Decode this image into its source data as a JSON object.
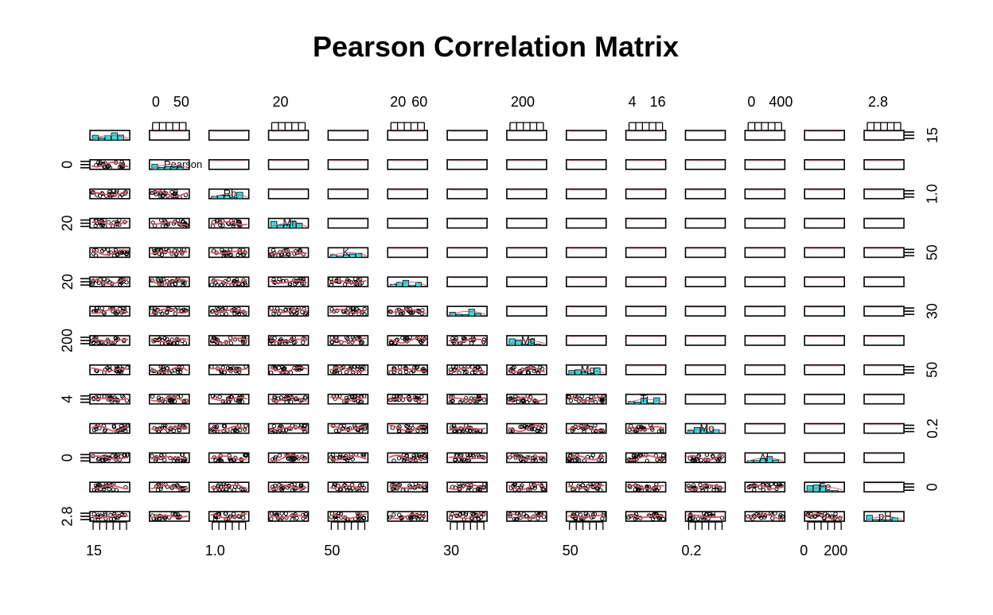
{
  "chart_data": {
    "type": "scatter",
    "title": "Pearson Correlation Matrix",
    "matrix_size": 14,
    "variables": [
      "",
      "Pearson",
      "Rb",
      "Mn",
      "K",
      "",
      "",
      "Mg",
      "Mg",
      "Ti",
      "Mo",
      "Al",
      "Fe",
      "pH"
    ],
    "top_tick_labels": [
      {
        "col": 1,
        "labels": [
          "0",
          "50"
        ]
      },
      {
        "col": 3,
        "labels": [
          "20"
        ]
      },
      {
        "col": 5,
        "labels": [
          "20",
          "60"
        ]
      },
      {
        "col": 7,
        "labels": [
          "200"
        ]
      },
      {
        "col": 9,
        "labels": [
          "4",
          "16"
        ]
      },
      {
        "col": 11,
        "labels": [
          "0",
          "400"
        ]
      },
      {
        "col": 13,
        "labels": [
          "2.8"
        ]
      }
    ],
    "bottom_tick_labels": [
      {
        "col": 0,
        "labels": [
          "15"
        ]
      },
      {
        "col": 2,
        "labels": [
          "1.0"
        ]
      },
      {
        "col": 4,
        "labels": [
          "50"
        ]
      },
      {
        "col": 6,
        "labels": [
          "30"
        ]
      },
      {
        "col": 8,
        "labels": [
          "50"
        ]
      },
      {
        "col": 10,
        "labels": [
          "0.2"
        ]
      },
      {
        "col": 12,
        "labels": [
          "0",
          "200"
        ]
      }
    ],
    "left_tick_labels": [
      {
        "row": 1,
        "label": "0"
      },
      {
        "row": 3,
        "label": "20"
      },
      {
        "row": 5,
        "label": "20"
      },
      {
        "row": 7,
        "label": "200"
      },
      {
        "row": 9,
        "label": "4"
      },
      {
        "row": 11,
        "label": "0"
      },
      {
        "row": 13,
        "label": "2.8"
      }
    ],
    "right_tick_labels": [
      {
        "row": 0,
        "label": "15"
      },
      {
        "row": 2,
        "label": "1.0"
      },
      {
        "row": 4,
        "label": "50"
      },
      {
        "row": 6,
        "label": "30"
      },
      {
        "row": 8,
        "label": "50"
      },
      {
        "row": 10,
        "label": "0.2"
      },
      {
        "row": 12,
        "label": "0"
      }
    ],
    "lower_panels": "scatter with smooth fit line",
    "upper_panels": "empty",
    "diagonal_panels": "histogram",
    "colors": {
      "points": "#000000",
      "smooth_line": "#DF536B",
      "histogram_fill": "#22E5E5",
      "upper_faint_line": "#F4C2CA",
      "upper_faint_cyan": "#C6F3F3"
    }
  }
}
